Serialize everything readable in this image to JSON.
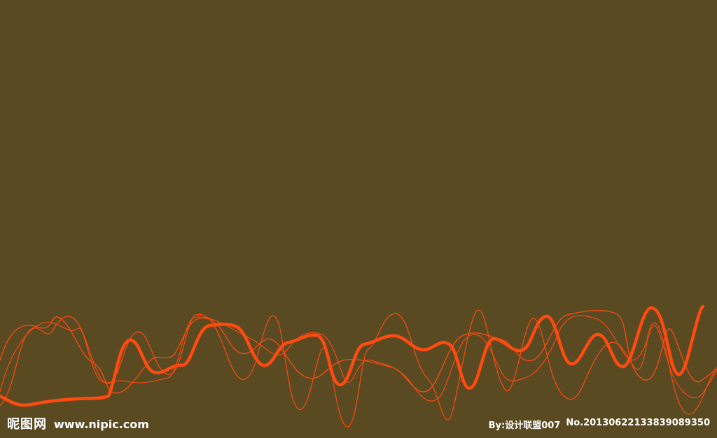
{
  "colors": {
    "background": "#5a4a22",
    "wave": "#ff4a10"
  },
  "watermark": {
    "brand": "昵图网",
    "url": "www.nipic.com",
    "author": "By:设计联盟007",
    "number": "No.20130622133839089350"
  }
}
